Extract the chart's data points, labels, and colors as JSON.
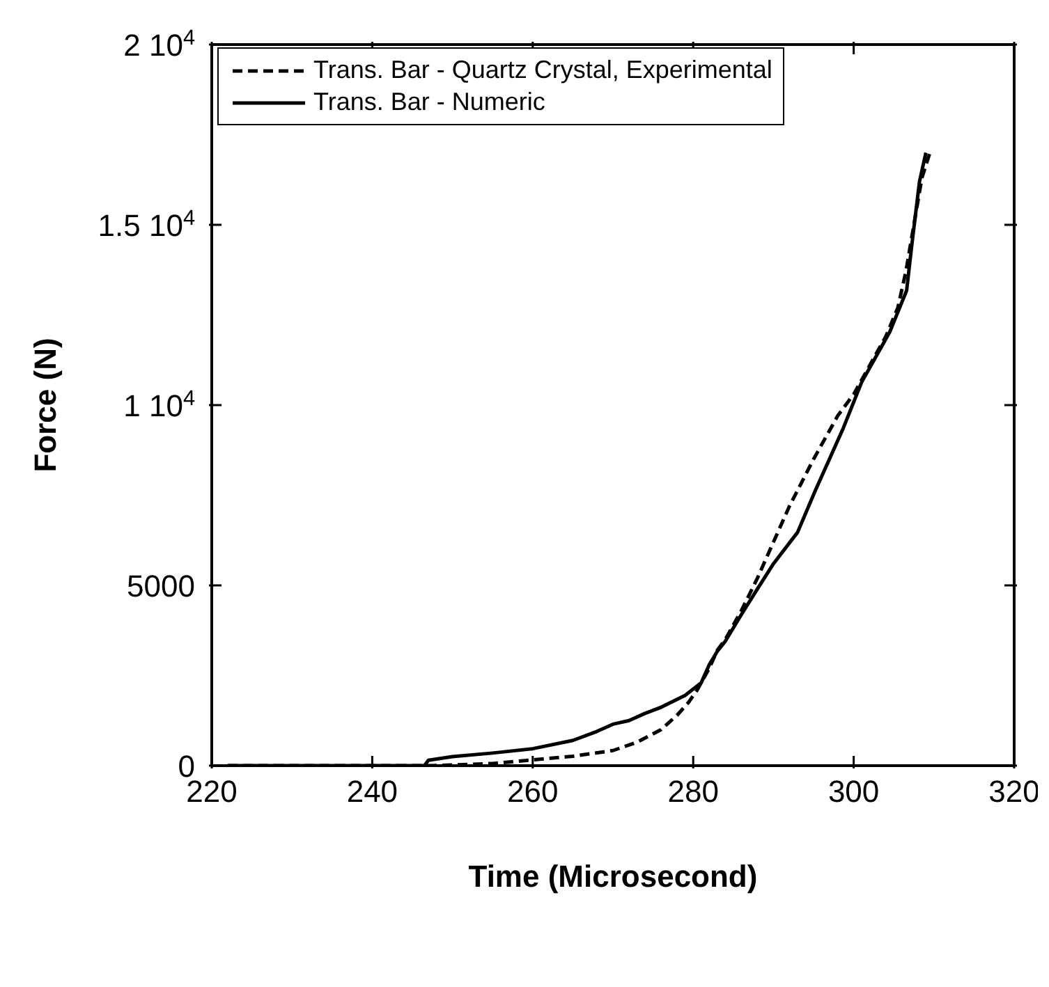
{
  "chart_data": {
    "type": "line",
    "xlabel": "Time (Microsecond)",
    "ylabel": "Force (N)",
    "xlim": [
      220,
      320
    ],
    "xticks": [
      220,
      240,
      260,
      280,
      300,
      320
    ],
    "ylim": [
      0,
      20000
    ],
    "yticks": [
      0,
      5000,
      {
        "value": 10000,
        "label": "1 10$^{4}$"
      },
      {
        "value": 15000,
        "label": "1.5 10$^{4}$"
      },
      {
        "value": 20000,
        "label": "2 10$^{4}$"
      }
    ],
    "legend": "top left",
    "marker": "none",
    "series": [
      {
        "name": "Trans. Bar - Quartz Crystal, Experimental",
        "color": "#000000",
        "line_style": "dashed",
        "x": [
          222,
          230,
          240,
          247,
          250,
          255,
          260,
          265,
          270,
          273,
          276,
          278,
          279.4,
          280.5,
          282,
          283,
          284,
          286,
          288,
          290,
          292,
          295,
          298,
          300,
          302,
          304,
          305.5,
          306.5,
          307.5,
          308.5,
          309.5
        ],
        "values": [
          0,
          0,
          0,
          0,
          20,
          60,
          160,
          260,
          420,
          650,
          1000,
          1400,
          1750,
          2100,
          2700,
          3200,
          3500,
          4300,
          5200,
          6200,
          7200,
          8500,
          9700,
          10300,
          11100,
          11900,
          12700,
          13700,
          15000,
          16300,
          17000
        ]
      },
      {
        "name": "Trans. Bar - Numeric",
        "color": "#000000",
        "line_style": "solid",
        "x": [
          222,
          230,
          240,
          246.5,
          247,
          250,
          255,
          260,
          265,
          268,
          270,
          272,
          274,
          276,
          279,
          281,
          282,
          283,
          284,
          286,
          288,
          290,
          293,
          295.2,
          298.7,
          301,
          304.5,
          306.6,
          307.2,
          308.2,
          309
        ],
        "values": [
          0,
          0,
          0,
          0,
          150,
          250,
          350,
          470,
          700,
          950,
          1150,
          1250,
          1450,
          1620,
          1950,
          2300,
          2800,
          3170,
          3450,
          4190,
          4900,
          5600,
          6470,
          7620,
          9360,
          10640,
          12030,
          13180,
          14360,
          16200,
          17000
        ]
      }
    ]
  }
}
